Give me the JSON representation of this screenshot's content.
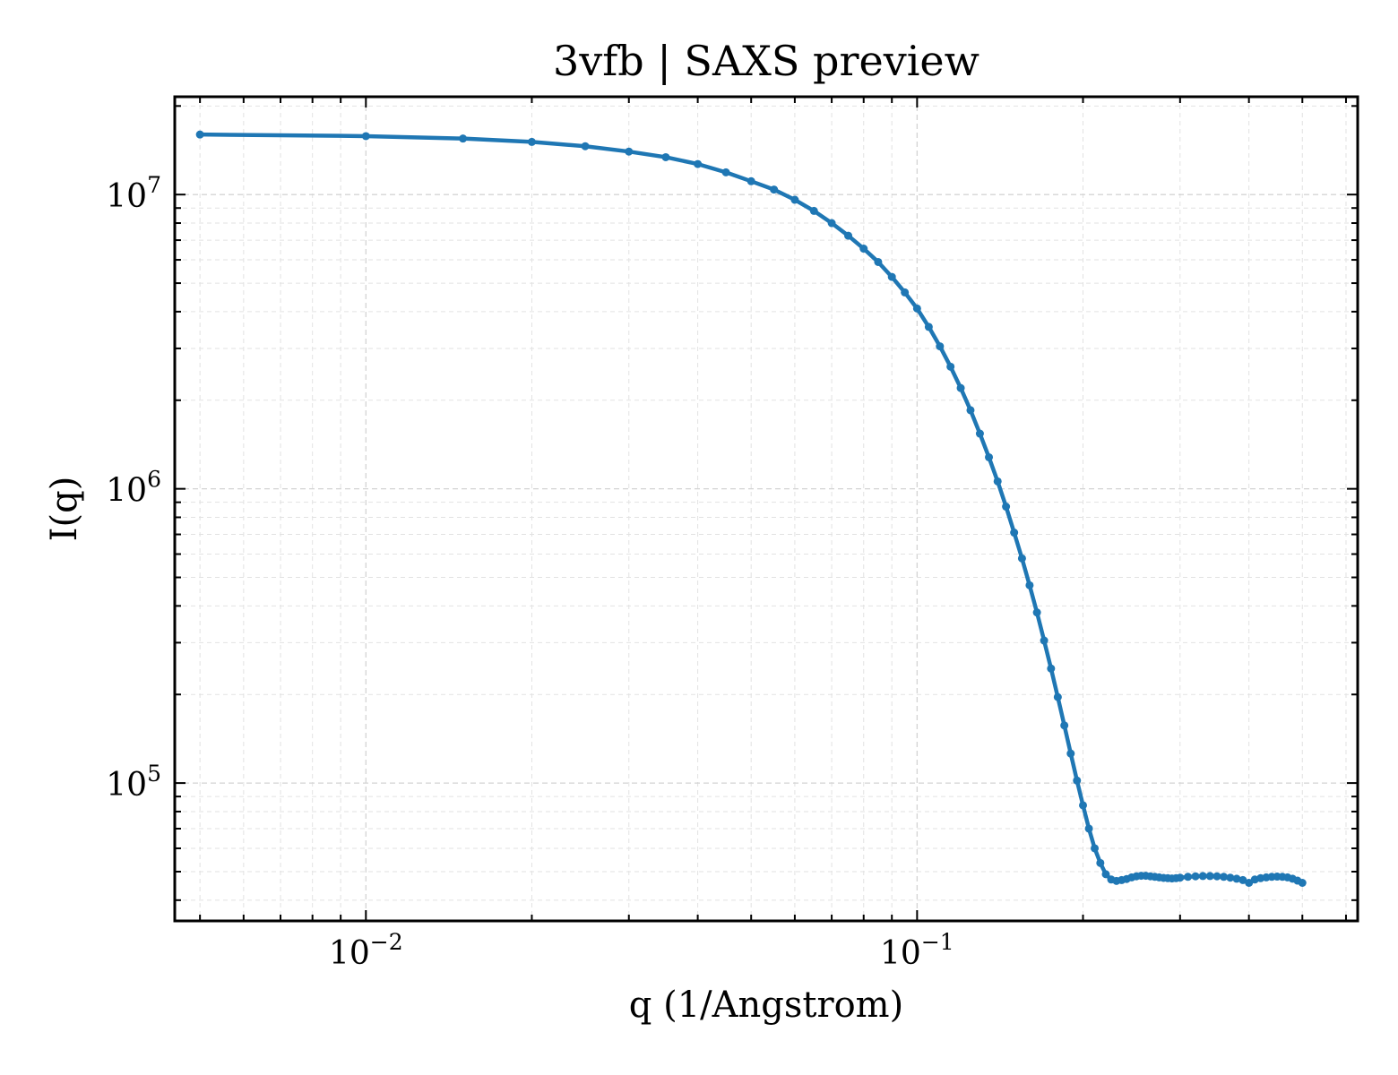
{
  "chart_data": {
    "type": "line",
    "title": "3vfb | SAXS preview",
    "xlabel": "q (1/Angstrom)",
    "ylabel": "I(q)",
    "xscale": "log",
    "yscale": "log",
    "xlim": [
      0.0045,
      0.63
    ],
    "ylim": [
      34000,
      21500000
    ],
    "grid": true,
    "legend": "none",
    "x_ticks": [
      {
        "value": 0.01,
        "base": "10",
        "exp": "−2"
      },
      {
        "value": 0.1,
        "base": "10",
        "exp": "−1"
      }
    ],
    "y_ticks": [
      {
        "value": 100000,
        "base": "10",
        "exp": "5"
      },
      {
        "value": 1000000,
        "base": "10",
        "exp": "6"
      },
      {
        "value": 10000000,
        "base": "10",
        "exp": "7"
      }
    ],
    "colors": {
      "line": "#1f77b4"
    },
    "series": [
      {
        "x": [
          0.005,
          0.01,
          0.015,
          0.02,
          0.025,
          0.03,
          0.035,
          0.04,
          0.045,
          0.05,
          0.055,
          0.06,
          0.065,
          0.07,
          0.075,
          0.08,
          0.085,
          0.09,
          0.095,
          0.1,
          0.105,
          0.11,
          0.115,
          0.12,
          0.125,
          0.13,
          0.135,
          0.14,
          0.145,
          0.15,
          0.155,
          0.16,
          0.165,
          0.17,
          0.175,
          0.18,
          0.185,
          0.19,
          0.195,
          0.2,
          0.205,
          0.21,
          0.215,
          0.22,
          0.225,
          0.23,
          0.235,
          0.24,
          0.245,
          0.25,
          0.255,
          0.26,
          0.265,
          0.27,
          0.275,
          0.28,
          0.285,
          0.29,
          0.295,
          0.3,
          0.31,
          0.32,
          0.33,
          0.34,
          0.35,
          0.36,
          0.37,
          0.38,
          0.39,
          0.4,
          0.41,
          0.42,
          0.43,
          0.44,
          0.45,
          0.46,
          0.47,
          0.48,
          0.49,
          0.5
        ],
        "y": [
          16000000,
          15800000,
          15500000,
          15100000,
          14600000,
          14000000,
          13400000,
          12700000,
          11900000,
          11100000,
          10400000,
          9600000,
          8800000,
          8000000,
          7250000,
          6550000,
          5900000,
          5250000,
          4650000,
          4100000,
          3550000,
          3050000,
          2600000,
          2200000,
          1850000,
          1540000,
          1280000,
          1060000,
          870000,
          710000,
          580000,
          470000,
          380000,
          305000,
          245000,
          196000,
          157000,
          126000,
          102000,
          84000,
          70000,
          60000,
          53500,
          49000,
          47000,
          46500,
          46800,
          47200,
          47800,
          48200,
          48400,
          48400,
          48200,
          48000,
          47800,
          47600,
          47500,
          47400,
          47500,
          47700,
          48000,
          48200,
          48300,
          48300,
          48200,
          48000,
          47700,
          47300,
          46800,
          45800,
          47000,
          47500,
          47800,
          48000,
          48100,
          48000,
          47800,
          47300,
          46600,
          45800
        ]
      }
    ]
  }
}
